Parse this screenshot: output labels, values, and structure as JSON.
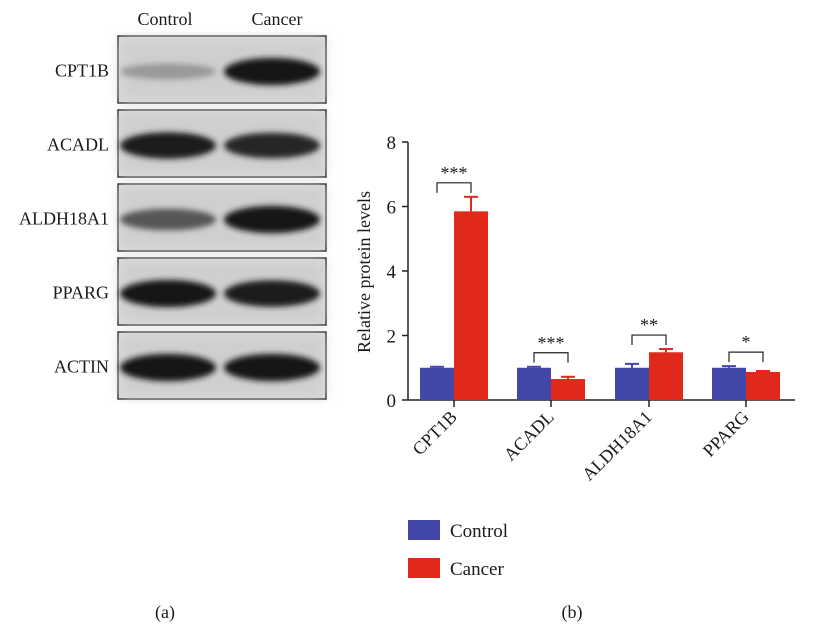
{
  "blot": {
    "columns": [
      "Control",
      "Cancer"
    ],
    "rows": [
      {
        "label": "CPT1B",
        "control": 0.25,
        "cancer": 0.95
      },
      {
        "label": "ACADL",
        "control": 0.9,
        "cancer": 0.85
      },
      {
        "label": "ALDH18A1",
        "control": 0.6,
        "cancer": 0.95
      },
      {
        "label": "PPARG",
        "control": 0.95,
        "cancer": 0.9
      },
      {
        "label": "ACTIN",
        "control": 0.95,
        "cancer": 0.95
      }
    ],
    "panel_label": "(a)"
  },
  "chart_data": {
    "type": "bar",
    "panel_label": "(b)",
    "categories": [
      "CPT1B",
      "ACADL",
      "ALDH18A1",
      "PPARG"
    ],
    "series": [
      {
        "name": "Control",
        "color": "#4347A8",
        "values": [
          1.0,
          1.0,
          1.0,
          1.0
        ],
        "error": [
          0.03,
          0.03,
          0.12,
          0.05
        ]
      },
      {
        "name": "Cancer",
        "color": "#E0291B",
        "values": [
          5.85,
          0.65,
          1.48,
          0.87
        ],
        "error": [
          0.45,
          0.07,
          0.1,
          0.03
        ]
      }
    ],
    "significance": [
      "***",
      "***",
      "**",
      "*"
    ],
    "xlabel": "",
    "ylabel": "Relative protein levels",
    "ylim": [
      0,
      8
    ],
    "yticks": [
      "0",
      "2",
      "4",
      "6",
      "8"
    ],
    "grid": false,
    "legend_position": "bottom-left"
  }
}
